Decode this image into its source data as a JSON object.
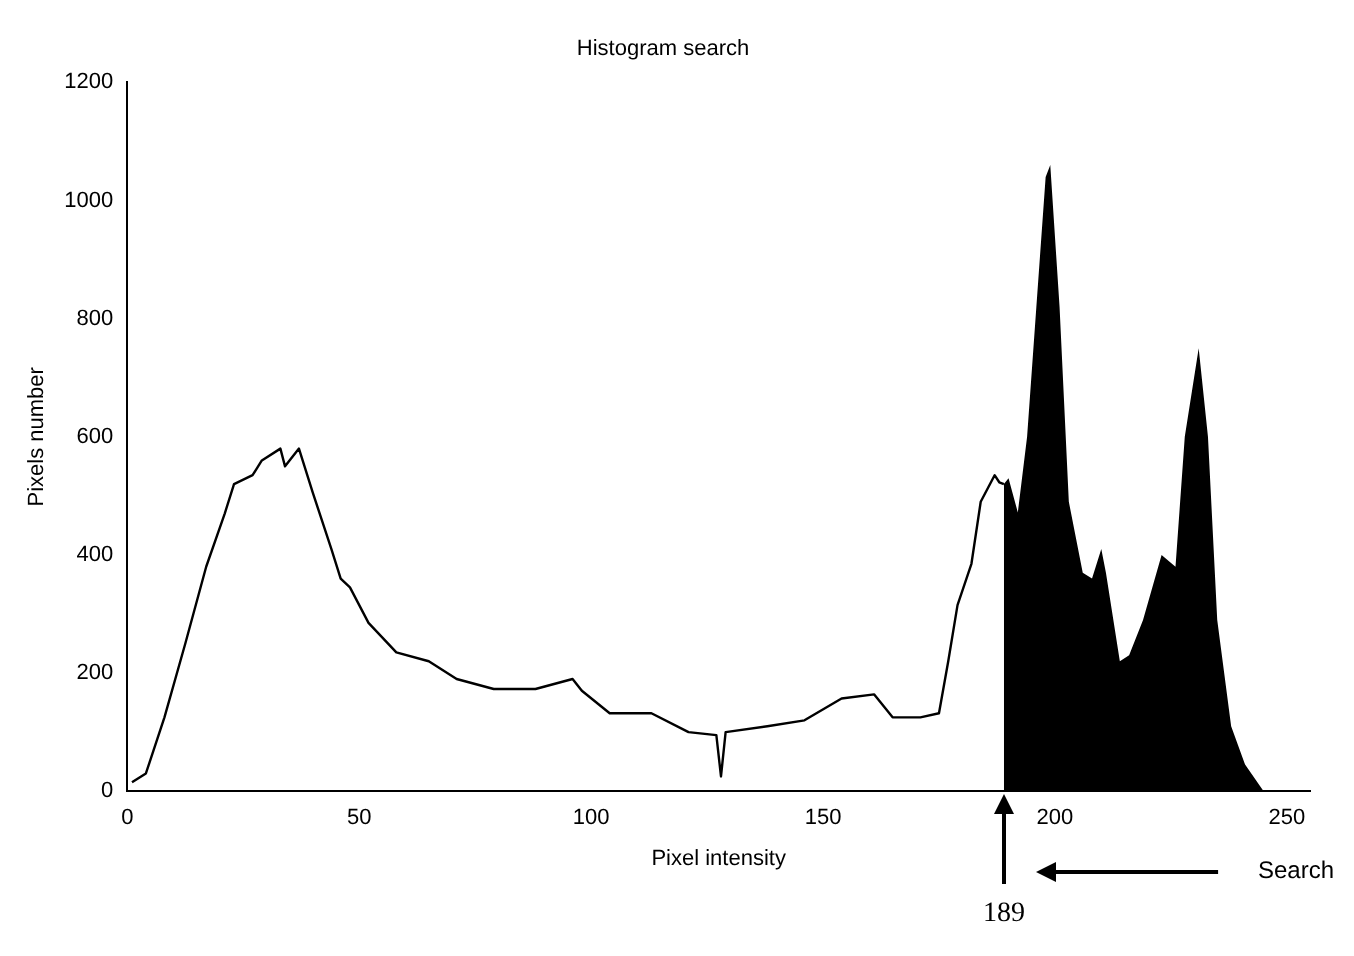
{
  "chart_data": {
    "type": "line",
    "title": "Histogram search",
    "xlabel": "Pixel intensity",
    "ylabel": "Pixels number",
    "xlim": [
      0,
      255
    ],
    "xticks": [
      0,
      50,
      100,
      150,
      200,
      250
    ],
    "ylim": [
      0,
      1200
    ],
    "yticks": [
      0,
      200,
      400,
      600,
      800,
      1000,
      1200
    ],
    "marker": "none",
    "line_style": "solid",
    "annotations": [
      "189",
      "Search"
    ],
    "series": [
      {
        "color": "#000000",
        "x": [
          1,
          4,
          8,
          12.5,
          17,
          21,
          23,
          27,
          29,
          33,
          34,
          37,
          40,
          44,
          46,
          48,
          52,
          58,
          65,
          71,
          79,
          88,
          96,
          98,
          104,
          113,
          121,
          127,
          128,
          129,
          138,
          146,
          154,
          161,
          165,
          171,
          175,
          177,
          179,
          182,
          184,
          187,
          188,
          189
        ],
        "values": [
          15,
          30,
          125,
          250,
          380,
          470,
          520,
          535,
          560,
          580,
          550,
          580,
          505,
          410,
          360,
          345,
          285,
          235,
          220,
          190,
          173,
          173,
          190,
          170,
          132,
          132,
          100,
          95,
          25,
          100,
          110,
          120,
          157,
          164,
          125,
          125,
          132,
          220,
          315,
          385,
          490,
          535,
          523,
          520
        ]
      },
      {
        "type": "area",
        "color": "#000000",
        "x": [
          189,
          190,
          192,
          194,
          196,
          198,
          199,
          201,
          203,
          206,
          208,
          210,
          211,
          214,
          216,
          219,
          223,
          226,
          228,
          231,
          233,
          235,
          238,
          241,
          245
        ],
        "values": [
          520,
          530,
          472,
          600,
          820,
          1040,
          1060,
          820,
          490,
          370,
          360,
          410,
          370,
          220,
          230,
          290,
          400,
          380,
          600,
          750,
          600,
          290,
          110,
          45,
          0
        ]
      }
    ]
  }
}
